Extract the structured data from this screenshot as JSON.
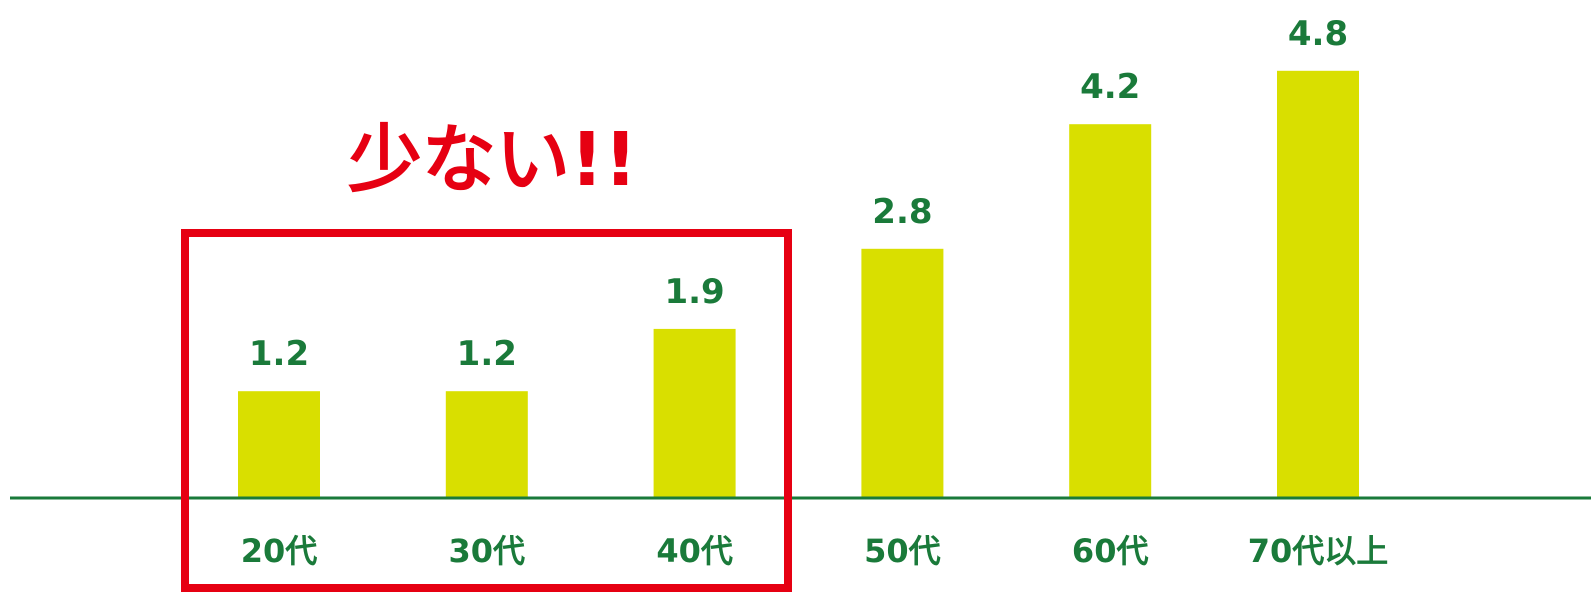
{
  "chart_data": {
    "type": "bar",
    "categories": [
      "20代",
      "30代",
      "40代",
      "50代",
      "60代",
      "70代以上"
    ],
    "values": [
      1.2,
      1.2,
      1.9,
      2.8,
      4.2,
      4.8
    ],
    "value_labels": [
      "1.2",
      "1.2",
      "1.9",
      "2.8",
      "4.2",
      "4.8"
    ],
    "title": "",
    "xlabel": "",
    "ylabel": "",
    "ylim": [
      0,
      5.5
    ],
    "grid": false,
    "legend": "none",
    "annotation": {
      "text": "少ない!!",
      "highlighted_categories": [
        "20代",
        "30代",
        "40代"
      ]
    },
    "colors": {
      "bar": "#d9df00",
      "baseline": "#1a7a3a",
      "label": "#1a7a3a",
      "highlight": "#e60012"
    }
  }
}
